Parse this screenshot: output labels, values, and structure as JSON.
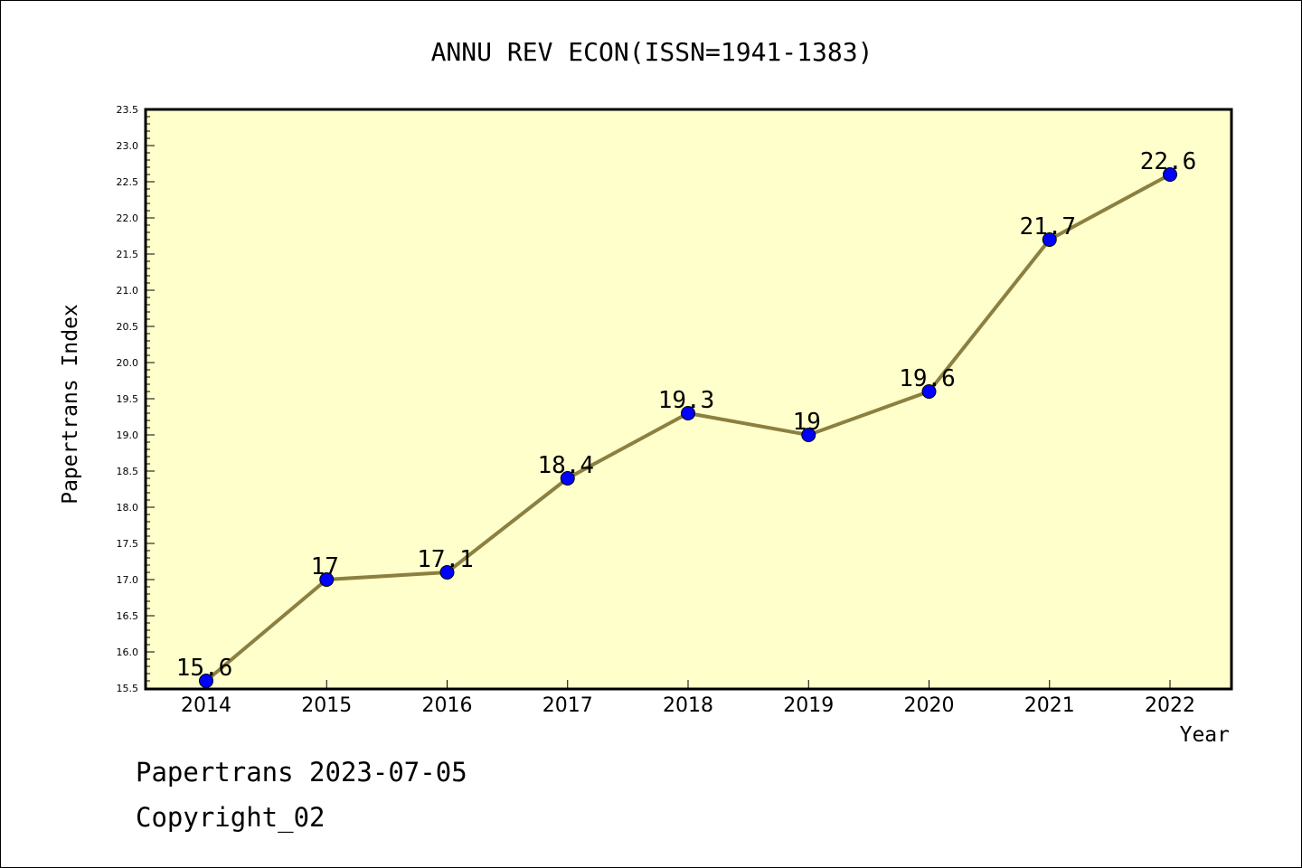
{
  "chart_data": {
    "type": "line",
    "title": "ANNU REV ECON(ISSN=1941-1383)",
    "xlabel": "Year",
    "ylabel": "Papertrans Index",
    "categories": [
      "2014",
      "2015",
      "2016",
      "2017",
      "2018",
      "2019",
      "2020",
      "2021",
      "2022"
    ],
    "series": [
      {
        "values": [
          15.6,
          17,
          17.1,
          18.4,
          19.3,
          19,
          19.6,
          21.7,
          22.6
        ],
        "labels": [
          "15.6",
          "17",
          "17.1",
          "18.4",
          "19.3",
          "19",
          "19.6",
          "21.7",
          "22.6"
        ]
      }
    ],
    "ylim": [
      15.5,
      23.5
    ],
    "yticks": [
      "15.5",
      "16.0",
      "16.5",
      "17.0",
      "17.5",
      "18.0",
      "18.5",
      "19.0",
      "19.5",
      "20.0",
      "20.5",
      "21.0",
      "21.5",
      "22.0",
      "22.5",
      "23.0",
      "23.5"
    ],
    "grid": false,
    "legend": "none",
    "colors": {
      "plot_background": "#ffffcc",
      "line": "#8b8040",
      "marker": "#0000ff"
    }
  },
  "footer": {
    "line1": "Papertrans 2023-07-05",
    "line2": "Copyright_02"
  }
}
